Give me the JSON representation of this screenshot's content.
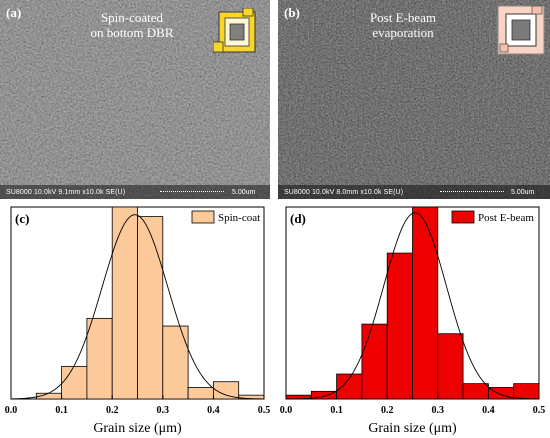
{
  "panel_a": {
    "label": "(a)",
    "caption_line1": "Spin-coated",
    "caption_line2": "on bottom DBR",
    "footer": "SU8000 10.0kV 9.1mm x10.0k SE(U)",
    "scale": "5.00um"
  },
  "panel_b": {
    "label": "(b)",
    "caption_line1": "Post E-beam",
    "caption_line2": "evaporation",
    "footer": "SU8000 10.0kV 8.0mm x10.0k SE(U)",
    "scale": "5.00um"
  },
  "chart_data": [
    {
      "type": "bar",
      "panel_label": "(c)",
      "legend": "Spin-coat",
      "bar_color": "#fcc99a",
      "edge_color": "#000000",
      "bin_edges": [
        0.0,
        0.05,
        0.1,
        0.15,
        0.2,
        0.25,
        0.3,
        0.35,
        0.4,
        0.45,
        0.5
      ],
      "values": [
        0.0,
        0.03,
        0.17,
        0.42,
        1.0,
        0.95,
        0.38,
        0.06,
        0.09,
        0.02
      ],
      "fit_curve": {
        "type": "gaussian",
        "mean": 0.245,
        "sigma": 0.065,
        "peak": 0.96
      },
      "xlabel": "Grain size (μm)",
      "xticks": [
        "0.0",
        "0.1",
        "0.2",
        "0.3",
        "0.4",
        "0.5"
      ],
      "xlim": [
        0,
        0.5
      ],
      "ylim": [
        0,
        1.0
      ],
      "legend_position": "top-right"
    },
    {
      "type": "bar",
      "panel_label": "(d)",
      "legend": "Post E-beam",
      "bar_color": "#ee0000",
      "edge_color": "#000000",
      "bin_edges": [
        0.0,
        0.05,
        0.1,
        0.15,
        0.2,
        0.25,
        0.3,
        0.35,
        0.4,
        0.45,
        0.5
      ],
      "values": [
        0.02,
        0.04,
        0.13,
        0.39,
        0.76,
        1.0,
        0.34,
        0.08,
        0.06,
        0.08
      ],
      "fit_curve": {
        "type": "gaussian",
        "mean": 0.255,
        "sigma": 0.062,
        "peak": 0.97
      },
      "xlabel": "Grain size (μm)",
      "xticks": [
        "0.0",
        "0.1",
        "0.2",
        "0.3",
        "0.4",
        "0.5"
      ],
      "xlim": [
        0,
        0.5
      ],
      "ylim": [
        0,
        1.0
      ],
      "legend_position": "top-right"
    }
  ]
}
